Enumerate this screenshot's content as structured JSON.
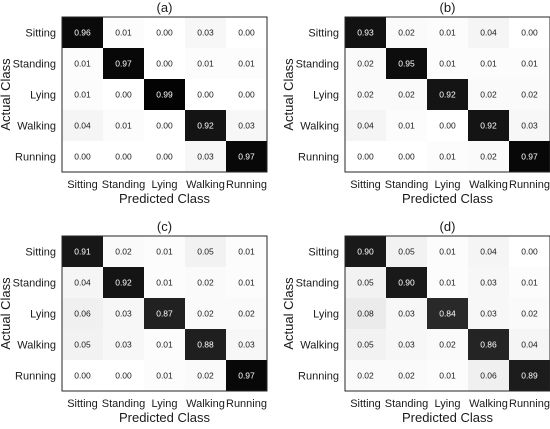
{
  "figure": {
    "xlabel": "Predicted Class",
    "ylabel": "Actual Class"
  },
  "chart_data": [
    {
      "type": "heatmap",
      "title": "(a)",
      "xlabel": "Predicted Class",
      "ylabel": "Actual Class",
      "x_categories": [
        "Sitting",
        "Standing",
        "Lying",
        "Walking",
        "Running"
      ],
      "y_categories": [
        "Sitting",
        "Standing",
        "Lying",
        "Walking",
        "Running"
      ],
      "values": [
        [
          0.96,
          0.01,
          0.0,
          0.03,
          0.0
        ],
        [
          0.01,
          0.97,
          0.0,
          0.01,
          0.01
        ],
        [
          0.01,
          0.0,
          0.99,
          0.0,
          0.0
        ],
        [
          0.04,
          0.01,
          0.0,
          0.92,
          0.03
        ],
        [
          0.0,
          0.0,
          0.0,
          0.03,
          0.97
        ]
      ],
      "colormap": "white-to-black",
      "value_range": [
        0,
        1
      ]
    },
    {
      "type": "heatmap",
      "title": "(b)",
      "xlabel": "Predicted Class",
      "ylabel": "Actual Class",
      "x_categories": [
        "Sitting",
        "Standing",
        "Lying",
        "Walking",
        "Running"
      ],
      "y_categories": [
        "Sitting",
        "Standing",
        "Lying",
        "Walking",
        "Running"
      ],
      "values": [
        [
          0.93,
          0.02,
          0.01,
          0.04,
          0.0
        ],
        [
          0.02,
          0.95,
          0.01,
          0.01,
          0.01
        ],
        [
          0.02,
          0.02,
          0.92,
          0.02,
          0.02
        ],
        [
          0.04,
          0.01,
          0.0,
          0.92,
          0.03
        ],
        [
          0.0,
          0.0,
          0.01,
          0.02,
          0.97
        ]
      ],
      "colormap": "white-to-black",
      "value_range": [
        0,
        1
      ]
    },
    {
      "type": "heatmap",
      "title": "(c)",
      "xlabel": "Predicted Class",
      "ylabel": "Actual Class",
      "x_categories": [
        "Sitting",
        "Standing",
        "Lying",
        "Walking",
        "Running"
      ],
      "y_categories": [
        "Sitting",
        "Standing",
        "Lying",
        "Walking",
        "Running"
      ],
      "values": [
        [
          0.91,
          0.02,
          0.01,
          0.05,
          0.01
        ],
        [
          0.04,
          0.92,
          0.01,
          0.02,
          0.01
        ],
        [
          0.06,
          0.03,
          0.87,
          0.02,
          0.02
        ],
        [
          0.05,
          0.03,
          0.01,
          0.88,
          0.03
        ],
        [
          0.0,
          0.0,
          0.01,
          0.02,
          0.97
        ]
      ],
      "colormap": "white-to-black",
      "value_range": [
        0,
        1
      ]
    },
    {
      "type": "heatmap",
      "title": "(d)",
      "xlabel": "Predicted Class",
      "ylabel": "Actual Class",
      "x_categories": [
        "Sitting",
        "Standing",
        "Lying",
        "Walking",
        "Running"
      ],
      "y_categories": [
        "Sitting",
        "Standing",
        "Lying",
        "Walking",
        "Running"
      ],
      "values": [
        [
          0.9,
          0.05,
          0.01,
          0.04,
          0.0
        ],
        [
          0.05,
          0.9,
          0.01,
          0.03,
          0.01
        ],
        [
          0.08,
          0.03,
          0.84,
          0.03,
          0.02
        ],
        [
          0.05,
          0.03,
          0.02,
          0.86,
          0.04
        ],
        [
          0.02,
          0.02,
          0.01,
          0.06,
          0.89
        ]
      ],
      "colormap": "white-to-black",
      "value_range": [
        0,
        1
      ]
    }
  ]
}
